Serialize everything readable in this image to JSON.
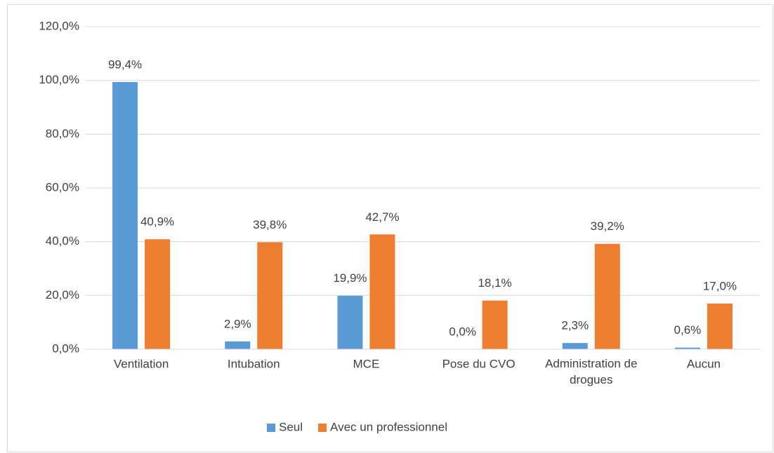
{
  "chart_data": {
    "type": "bar",
    "categories": [
      "Ventilation",
      "Intubation",
      "MCE",
      "Pose du CVO",
      "Administration de drogues",
      "Aucun"
    ],
    "series": [
      {
        "name": "Seul",
        "color": "#5b9bd5",
        "values": [
          99.4,
          2.9,
          19.9,
          0.0,
          2.3,
          0.6
        ],
        "value_labels": [
          "99,4%",
          "2,9%",
          "19,9%",
          "0,0%",
          "2,3%",
          "0,6%"
        ]
      },
      {
        "name": "Avec un professionnel",
        "color": "#ed7d31",
        "values": [
          40.9,
          39.8,
          42.7,
          18.1,
          39.2,
          17.0
        ],
        "value_labels": [
          "40,9%",
          "39,8%",
          "42,7%",
          "18,1%",
          "39,2%",
          "17,0%"
        ]
      }
    ],
    "ylim": [
      0,
      120
    ],
    "yticks": [
      {
        "value": 0,
        "label": "0,0%"
      },
      {
        "value": 20,
        "label": "20,0%"
      },
      {
        "value": 40,
        "label": "40,0%"
      },
      {
        "value": 60,
        "label": "60,0%"
      },
      {
        "value": 80,
        "label": "80,0%"
      },
      {
        "value": 100,
        "label": "100,0%"
      },
      {
        "value": 120,
        "label": "120,0%"
      }
    ],
    "grid": true,
    "legend": "bottom"
  }
}
